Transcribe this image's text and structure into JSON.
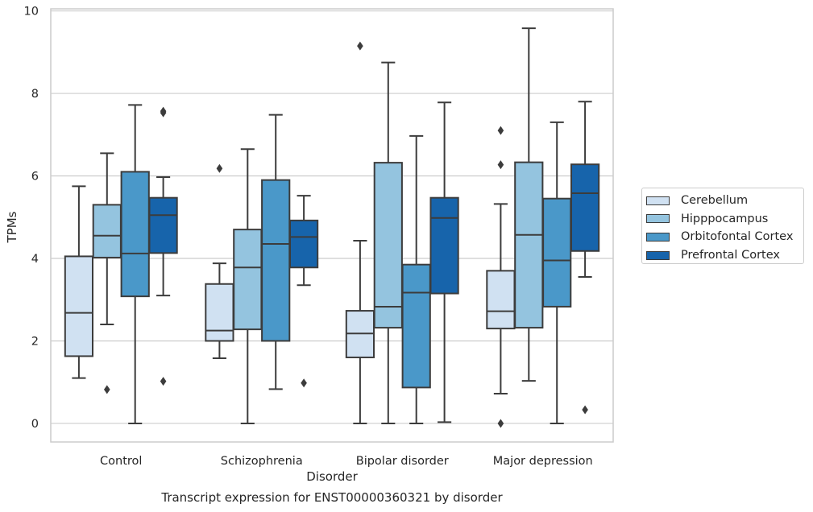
{
  "chart_data": {
    "type": "box",
    "xlabel": "Disorder",
    "ylabel": "TPMs",
    "ylim": [
      -0.45,
      10.05
    ],
    "yticks": [
      0,
      2,
      4,
      6,
      8,
      10
    ],
    "grid": "horizontal",
    "legend_position": "right",
    "categories": [
      "Control",
      "Schizophrenia",
      "Bipolar disorder",
      "Major depression"
    ],
    "series": [
      {
        "name": "Cerebellum",
        "color": "#d0e1f2",
        "boxes": [
          {
            "whisker_low": 1.1,
            "q1": 1.63,
            "median": 2.68,
            "q3": 4.05,
            "whisker_high": 5.75,
            "outliers": []
          },
          {
            "whisker_low": 1.58,
            "q1": 2.0,
            "median": 2.25,
            "q3": 3.38,
            "whisker_high": 3.88,
            "outliers": [
              6.18
            ]
          },
          {
            "whisker_low": 0.0,
            "q1": 1.6,
            "median": 2.18,
            "q3": 2.73,
            "whisker_high": 4.43,
            "outliers": [
              9.15
            ]
          },
          {
            "whisker_low": 0.72,
            "q1": 2.3,
            "median": 2.72,
            "q3": 3.7,
            "whisker_high": 5.32,
            "outliers": [
              0.0,
              6.27,
              7.1
            ]
          }
        ]
      },
      {
        "name": "Hipppocampus",
        "color": "#94c4df",
        "boxes": [
          {
            "whisker_low": 2.4,
            "q1": 4.02,
            "median": 4.55,
            "q3": 5.3,
            "whisker_high": 6.55,
            "outliers": [
              0.82
            ]
          },
          {
            "whisker_low": 0.0,
            "q1": 2.28,
            "median": 3.78,
            "q3": 4.7,
            "whisker_high": 6.65,
            "outliers": []
          },
          {
            "whisker_low": 0.0,
            "q1": 2.32,
            "median": 2.83,
            "q3": 6.32,
            "whisker_high": 8.75,
            "outliers": []
          },
          {
            "whisker_low": 1.03,
            "q1": 2.32,
            "median": 4.57,
            "q3": 6.33,
            "whisker_high": 9.58,
            "outliers": []
          }
        ]
      },
      {
        "name": "Orbitofontal Cortex",
        "color": "#4a98c9",
        "boxes": [
          {
            "whisker_low": 0.0,
            "q1": 3.08,
            "median": 4.12,
            "q3": 6.1,
            "whisker_high": 7.72,
            "outliers": []
          },
          {
            "whisker_low": 0.83,
            "q1": 2.0,
            "median": 4.35,
            "q3": 5.9,
            "whisker_high": 7.48,
            "outliers": []
          },
          {
            "whisker_low": 0.0,
            "q1": 0.87,
            "median": 3.17,
            "q3": 3.85,
            "whisker_high": 6.97,
            "outliers": []
          },
          {
            "whisker_low": 0.0,
            "q1": 2.83,
            "median": 3.95,
            "q3": 5.45,
            "whisker_high": 7.3,
            "outliers": []
          }
        ]
      },
      {
        "name": "Prefrontal Cortex",
        "color": "#1764ab",
        "boxes": [
          {
            "whisker_low": 3.1,
            "q1": 4.13,
            "median": 5.05,
            "q3": 5.47,
            "whisker_high": 5.97,
            "outliers": [
              1.02,
              7.53,
              7.57
            ]
          },
          {
            "whisker_low": 3.35,
            "q1": 3.78,
            "median": 4.52,
            "q3": 4.92,
            "whisker_high": 5.52,
            "outliers": [
              0.98
            ]
          },
          {
            "whisker_low": 0.03,
            "q1": 3.15,
            "median": 4.98,
            "q3": 5.47,
            "whisker_high": 7.78,
            "outliers": []
          },
          {
            "whisker_low": 3.55,
            "q1": 4.18,
            "median": 5.58,
            "q3": 6.28,
            "whisker_high": 7.8,
            "outliers": [
              0.33
            ]
          }
        ]
      }
    ]
  },
  "caption": "Transcript expression for ENST00000360321 by disorder"
}
